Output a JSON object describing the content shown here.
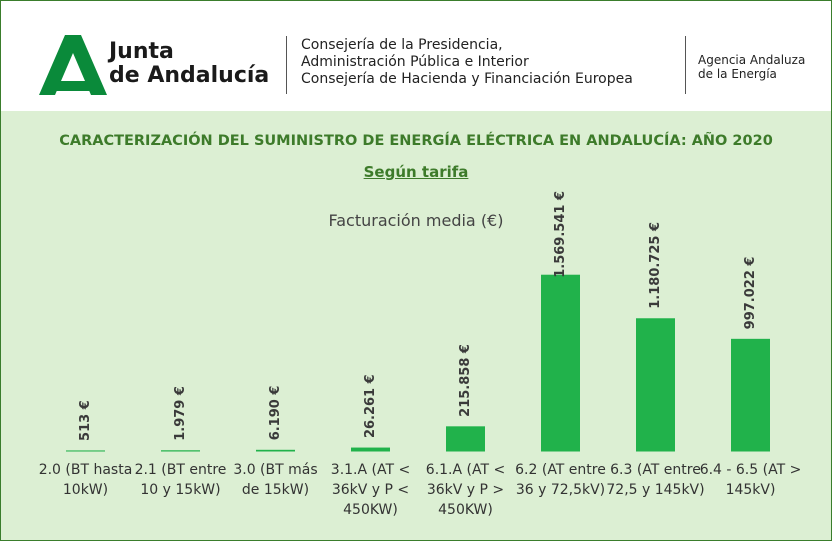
{
  "header": {
    "logo_line1": "Junta",
    "logo_line2": "de Andalucía",
    "department_lines": [
      "Consejería de la Presidencia,",
      "Administración Pública e Interior",
      "Consejería de Hacienda y Financiación Europea"
    ],
    "agency_lines": [
      "Agencia Andaluza",
      "de la Energía"
    ]
  },
  "chart_data": {
    "type": "bar",
    "title": "CARACTERIZACIÓN DEL SUMINISTRO DE ENERGÍA ELÉCTRICA EN ANDALUCÍA:   AÑO 2020",
    "subtitle": "Según tarifa",
    "chart_title": "Facturación media (€)",
    "categories": [
      "2.0 (BT hasta 10kW)",
      "2.1 (BT entre 10 y 15kW)",
      "3.0 (BT más de 15kW)",
      "3.1.A (AT < 36kV y P < 450KW)",
      "6.1.A (AT < 36kV y P > 450KW)",
      "6.2 (AT entre 36 y 72,5kV)",
      "6.3  (AT entre 72,5 y 145kV)",
      "6.4 - 6.5  (AT > 145kV)"
    ],
    "values": [
      513,
      1979,
      6190,
      26261,
      215858,
      1569541,
      1180725,
      997022
    ],
    "value_labels": [
      "513 €",
      "1.979 €",
      "6.190 €",
      "26.261 €",
      "215.858 €",
      "1.569.541 €",
      "1.180.725 €",
      "997.022 €"
    ],
    "color": "#21b24b",
    "ylim": [
      0,
      2000000
    ]
  }
}
